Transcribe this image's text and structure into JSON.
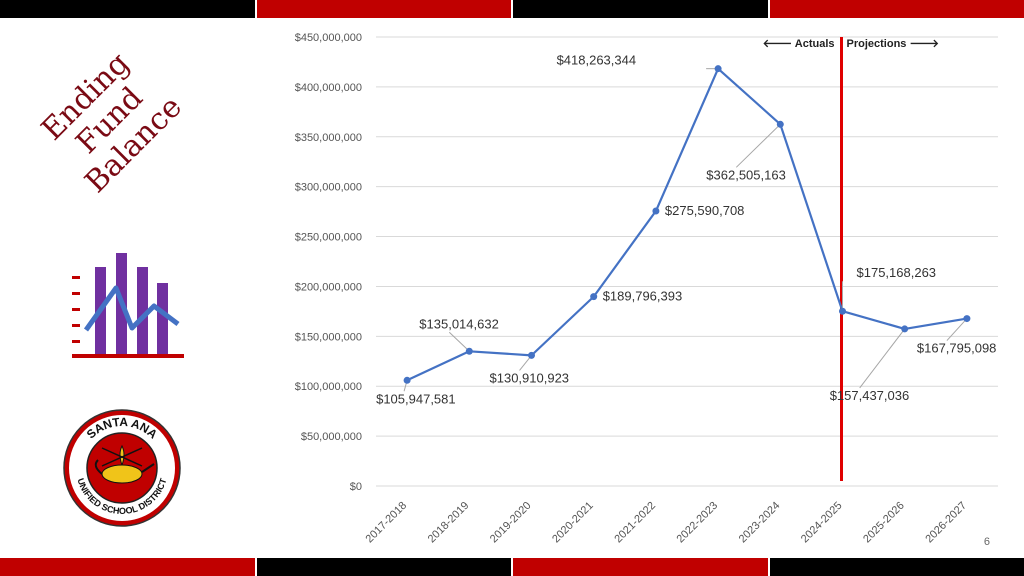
{
  "title": {
    "line1": "Ending Fund",
    "line2": "Balance"
  },
  "page_number": "6",
  "colors": {
    "red": "#c00000",
    "black": "#000000",
    "navy": "#1f2a44",
    "line": "#4472c4",
    "divider": "#e00000",
    "purple": "#7030a0"
  },
  "logo": {
    "top_text": "SANTA ANA",
    "bottom_text": "UNIFIED SCHOOL DISTRICT"
  },
  "icon_names": [
    "bar-chart-icon",
    "district-seal-icon"
  ],
  "annotations": {
    "actuals": "🡐 Actuals",
    "projections": "Projections 🡒"
  },
  "chart_data": {
    "type": "line",
    "title": "",
    "xlabel": "",
    "ylabel": "",
    "categories": [
      "2017-2018",
      "2018-2019",
      "2019-2020",
      "2020-2021",
      "2021-2022",
      "2022-2023",
      "2023-2024",
      "2024-2025",
      "2025-2026",
      "2026-2027"
    ],
    "values": [
      105947581,
      135014632,
      130910923,
      189796393,
      275590708,
      418263344,
      362505163,
      175168263,
      157437036,
      167795098
    ],
    "data_labels": [
      "$105,947,581",
      "$135,014,632",
      "$130,910,923",
      "$189,796,393",
      "$275,590,708",
      "$418,263,344",
      "$362,505,163",
      "$175,168,263",
      "$157,437,036",
      "$167,795,098"
    ],
    "ylim": [
      0,
      450000000
    ],
    "yticks": [
      0,
      50000000,
      100000000,
      150000000,
      200000000,
      250000000,
      300000000,
      350000000,
      400000000,
      450000000
    ],
    "ytick_labels": [
      "$0",
      "$50,000,000",
      "$100,000,000",
      "$150,000,000",
      "$200,000,000",
      "$250,000,000",
      "$300,000,000",
      "$350,000,000",
      "$400,000,000",
      "$450,000,000"
    ],
    "grid": true,
    "divider_between": [
      "2023-2024",
      "2024-2025"
    ]
  }
}
